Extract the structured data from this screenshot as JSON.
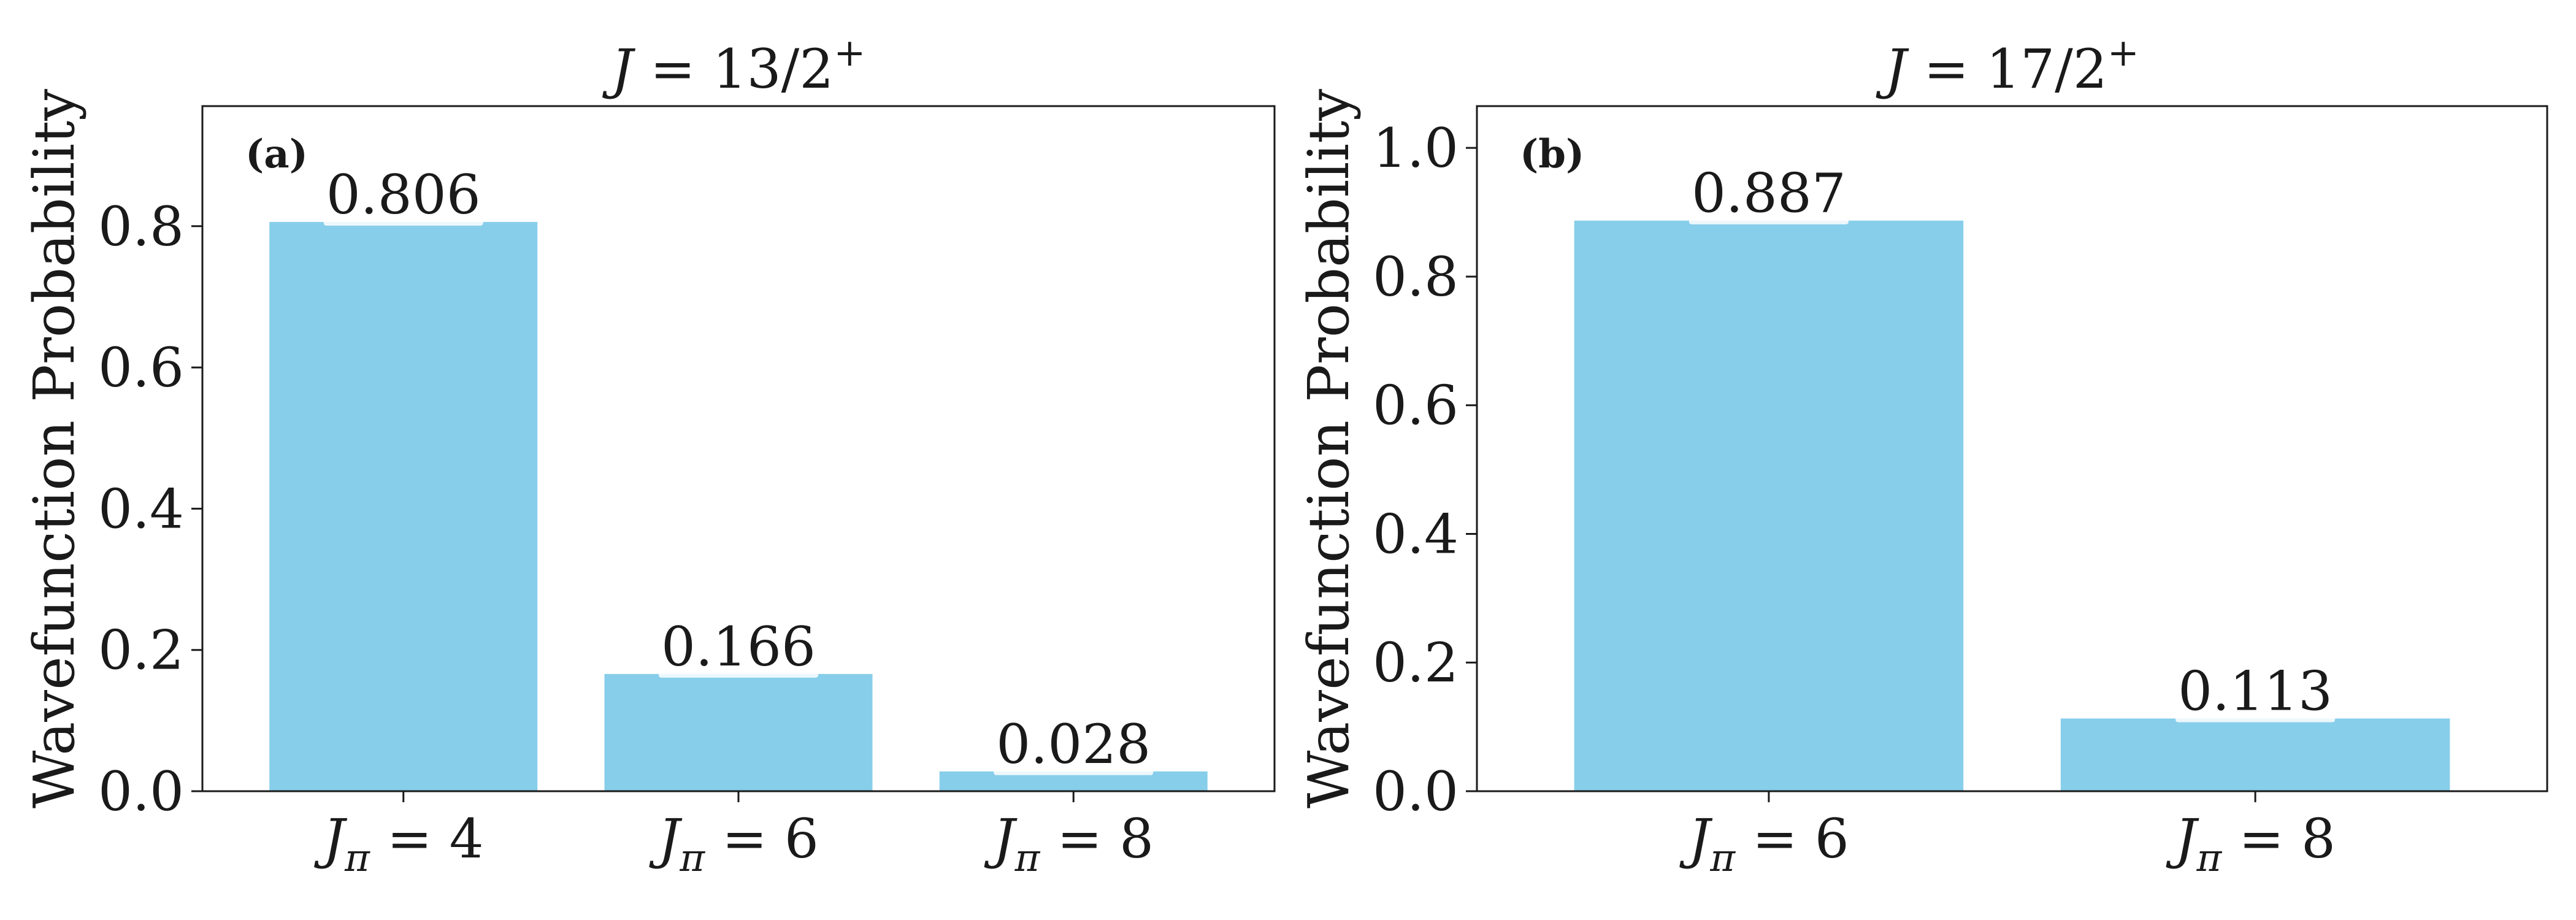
{
  "chart_data": [
    {
      "type": "bar",
      "panel": "(a)",
      "title": "J = 13/2+",
      "title_parts": {
        "main": "J",
        "eq": " = 13/2",
        "sup": "+"
      },
      "ylabel": "Wavefunction Probability",
      "ylim": [
        0,
        0.97
      ],
      "yticks": [
        0.0,
        0.2,
        0.4,
        0.6,
        0.8
      ],
      "ytick_labels": [
        "0.0",
        "0.2",
        "0.4",
        "0.6",
        "0.8"
      ],
      "categories": [
        "Jπ = 4",
        "Jπ = 6",
        "Jπ = 8"
      ],
      "category_parts": [
        {
          "sym": "J",
          "sub": "π",
          "rest": " = 4"
        },
        {
          "sym": "J",
          "sub": "π",
          "rest": " = 6"
        },
        {
          "sym": "J",
          "sub": "π",
          "rest": " = 8"
        }
      ],
      "values": [
        0.806,
        0.166,
        0.028
      ],
      "value_labels": [
        "0.806",
        "0.166",
        "0.028"
      ],
      "bar_color": "#87ceeb",
      "grid": false
    },
    {
      "type": "bar",
      "panel": "(b)",
      "title": "J = 17/2+",
      "title_parts": {
        "main": "J",
        "eq": " = 17/2",
        "sup": "+"
      },
      "ylabel": "Wavefunction Probability",
      "ylim": [
        0,
        1.065
      ],
      "yticks": [
        0.0,
        0.2,
        0.4,
        0.6,
        0.8,
        1.0
      ],
      "ytick_labels": [
        "0.0",
        "0.2",
        "0.4",
        "0.6",
        "0.8",
        "1.0"
      ],
      "categories": [
        "Jπ = 6",
        "Jπ = 8"
      ],
      "category_parts": [
        {
          "sym": "J",
          "sub": "π",
          "rest": " = 6"
        },
        {
          "sym": "J",
          "sub": "π",
          "rest": " = 8"
        }
      ],
      "values": [
        0.887,
        0.113
      ],
      "value_labels": [
        "0.887",
        "0.113"
      ],
      "bar_color": "#87ceeb",
      "grid": false
    }
  ]
}
